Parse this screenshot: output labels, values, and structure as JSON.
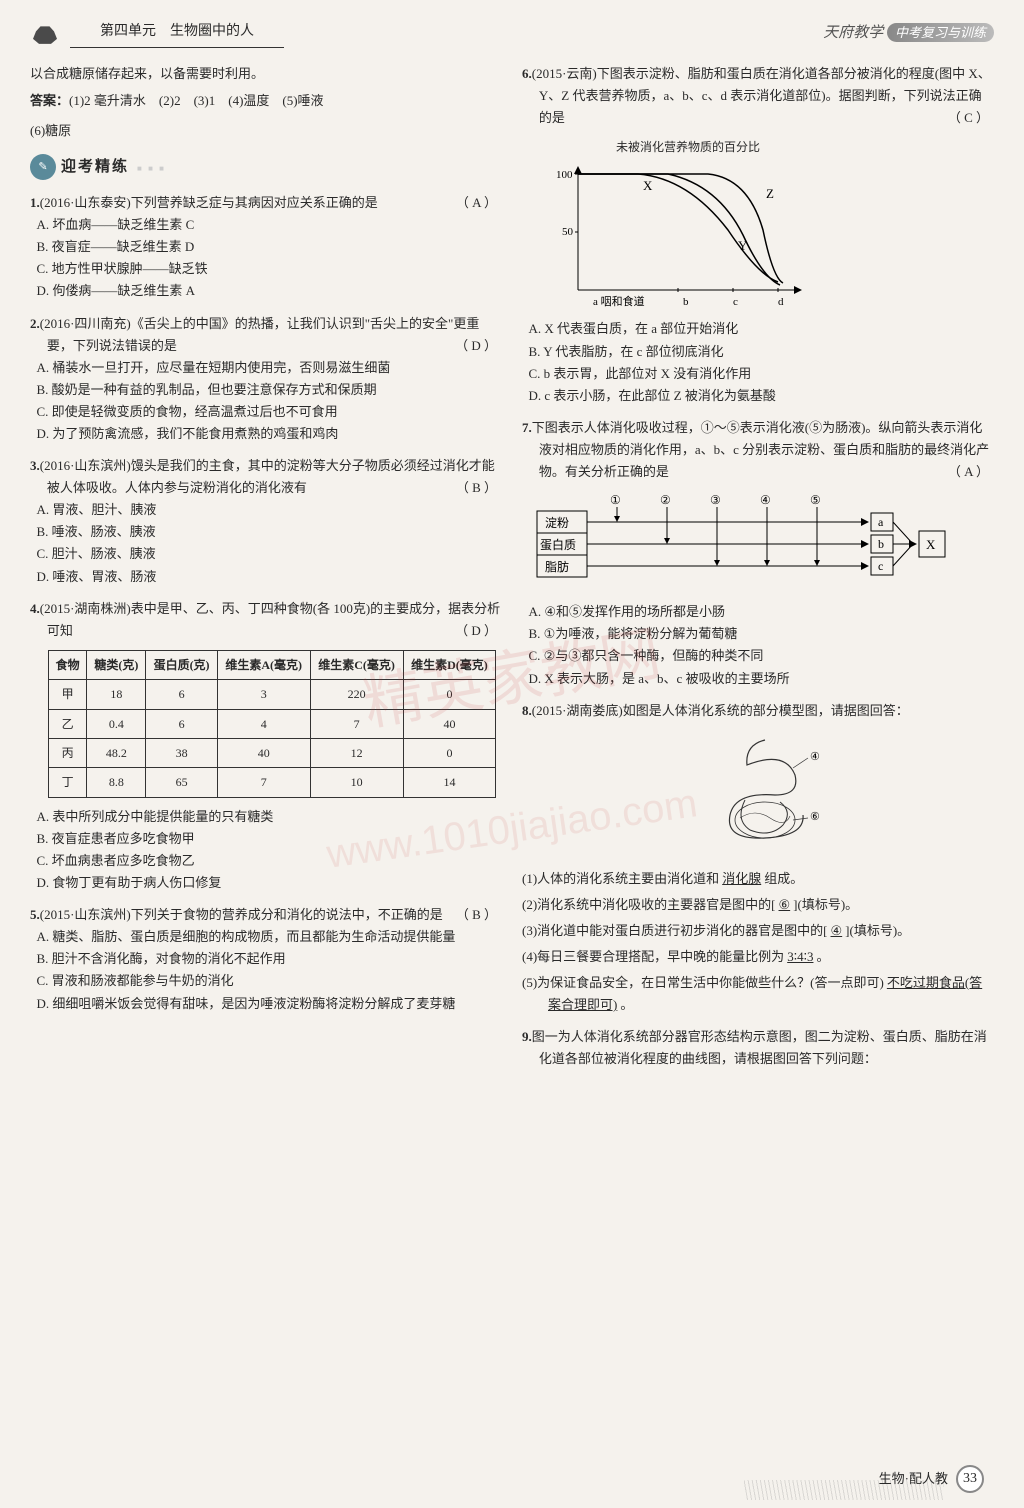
{
  "header": {
    "unit": "第四单元　生物圈中的人",
    "brand": "天府教学",
    "sub": "中考复习与训练"
  },
  "leftCol": {
    "intro": "以合成糖原储存起来，以备需要时利用。",
    "answerLabel": "答案：",
    "answers": "(1)2 毫升清水　(2)2　(3)1　(4)温度　(5)唾液",
    "answers2": "(6)糖原",
    "sectionTitle": "迎考精练",
    "q1": {
      "num": "1.",
      "src": "(2016·山东泰安)下列营养缺乏症与其病因对应关系正确的是",
      "ans": "（ A ）",
      "opts": [
        "A. 坏血病——缺乏维生素 C",
        "B. 夜盲症——缺乏维生素 D",
        "C. 地方性甲状腺肿——缺乏铁",
        "D. 佝偻病——缺乏维生素 A"
      ]
    },
    "q2": {
      "num": "2.",
      "src": "(2016·四川南充)《舌尖上的中国》的热播，让我们认识到\"舌尖上的安全\"更重要，下列说法错误的是",
      "ans": "（ D ）",
      "opts": [
        "A. 桶装水一旦打开，应尽量在短期内使用完，否则易滋生细菌",
        "B. 酸奶是一种有益的乳制品，但也要注意保存方式和保质期",
        "C. 即使是轻微变质的食物，经高温煮过后也不可食用",
        "D. 为了预防禽流感，我们不能食用煮熟的鸡蛋和鸡肉"
      ]
    },
    "q3": {
      "num": "3.",
      "src": "(2016·山东滨州)馒头是我们的主食，其中的淀粉等大分子物质必须经过消化才能被人体吸收。人体内参与淀粉消化的消化液有",
      "ans": "（ B ）",
      "opts": [
        "A. 胃液、胆汁、胰液",
        "B. 唾液、肠液、胰液",
        "C. 胆汁、肠液、胰液",
        "D. 唾液、胃液、肠液"
      ]
    },
    "q4": {
      "num": "4.",
      "src": "(2015·湖南株洲)表中是甲、乙、丙、丁四种食物(各 100克)的主要成分，据表分析可知",
      "ans": "（ D ）",
      "table": {
        "headers": [
          "食物",
          "糖类(克)",
          "蛋白质(克)",
          "维生素A(毫克)",
          "维生素C(毫克)",
          "维生素D(毫克)"
        ],
        "rows": [
          [
            "甲",
            "18",
            "6",
            "3",
            "220",
            "0"
          ],
          [
            "乙",
            "0.4",
            "6",
            "4",
            "7",
            "40"
          ],
          [
            "丙",
            "48.2",
            "38",
            "40",
            "12",
            "0"
          ],
          [
            "丁",
            "8.8",
            "65",
            "7",
            "10",
            "14"
          ]
        ]
      },
      "opts": [
        "A. 表中所列成分中能提供能量的只有糖类",
        "B. 夜盲症患者应多吃食物甲",
        "C. 坏血病患者应多吃食物乙",
        "D. 食物丁更有助于病人伤口修复"
      ]
    },
    "q5": {
      "num": "5.",
      "src": "(2015·山东滨州)下列关于食物的营养成分和消化的说法中，不正确的是",
      "ans": "（ B ）",
      "opts": [
        "A. 糖类、脂肪、蛋白质是细胞的构成物质，而且都能为生命活动提供能量",
        "B. 胆汁不含消化酶，对食物的消化不起作用",
        "C. 胃液和肠液都能参与牛奶的消化",
        "D. 细细咀嚼米饭会觉得有甜味，是因为唾液淀粉酶将淀粉分解成了麦芽糖"
      ]
    }
  },
  "rightCol": {
    "q6": {
      "num": "6.",
      "src": "(2015·云南)下图表示淀粉、脂肪和蛋白质在消化道各部分被消化的程度(图中 X、Y、Z 代表营养物质，a、b、c、d 表示消化道部位)。据图判断，下列说法正确的是",
      "ans": "（ C ）",
      "chartTitle": "未被消化营养物质的百分比",
      "chart": {
        "ylim": [
          0,
          100
        ],
        "yticks": [
          50,
          100
        ],
        "xlabels": [
          "a 咽和食道",
          "b",
          "c",
          "d"
        ],
        "bg": "#ffffff",
        "axis": "#000000",
        "curves": {
          "X": {
            "color": "#000",
            "points": [
              [
                0,
                100
              ],
              [
                60,
                100
              ],
              [
                120,
                95
              ],
              [
                180,
                55
              ],
              [
                220,
                8
              ]
            ]
          },
          "Y": {
            "color": "#000",
            "points": [
              [
                0,
                100
              ],
              [
                60,
                100
              ],
              [
                120,
                100
              ],
              [
                180,
                60
              ],
              [
                220,
                5
              ]
            ]
          },
          "Z": {
            "color": "#000",
            "points": [
              [
                0,
                100
              ],
              [
                60,
                100
              ],
              [
                120,
                100
              ],
              [
                160,
                100
              ],
              [
                200,
                45
              ],
              [
                220,
                8
              ]
            ]
          }
        }
      },
      "opts": [
        "A. X 代表蛋白质，在 a 部位开始消化",
        "B. Y 代表脂肪，在 c 部位彻底消化",
        "C. b 表示胃，此部位对 X 没有消化作用",
        "D. c 表示小肠，在此部位 Z 被消化为氨基酸"
      ]
    },
    "q7": {
      "num": "7.",
      "src": "下图表示人体消化吸收过程，①～⑤表示消化液(⑤为肠液)。纵向箭头表示消化液对相应物质的消化作用，a、b、c 分别表示淀粉、蛋白质和脂肪的最终消化产物。有关分析正确的是",
      "ans": "（ A ）",
      "diagram": {
        "rows": [
          "淀粉",
          "蛋白质",
          "脂肪"
        ],
        "cols": [
          "①",
          "②",
          "③",
          "④",
          "⑤"
        ],
        "outputs": [
          "a",
          "b",
          "c"
        ],
        "box": "X"
      },
      "opts": [
        "A. ④和⑤发挥作用的场所都是小肠",
        "B. ①为唾液，能将淀粉分解为葡萄糖",
        "C. ②与③都只含一种酶，但酶的种类不同",
        "D. X 表示大肠，是 a、b、c 被吸收的主要场所"
      ]
    },
    "q8": {
      "num": "8.",
      "src": "(2015·湖南娄底)如图是人体消化系统的部分模型图，请据图回答：",
      "subq": [
        {
          "n": "(1)",
          "t": "人体的消化系统主要由消化道和",
          "blank": "消化腺",
          "after": "组成。"
        },
        {
          "n": "(2)",
          "t": "消化系统中消化吸收的主要器官是图中的[",
          "blank": "⑥",
          "after": "](填标号)。"
        },
        {
          "n": "(3)",
          "t": "消化道中能对蛋白质进行初步消化的器官是图中的[",
          "blank": "④",
          "after": "](填标号)。"
        },
        {
          "n": "(4)",
          "t": "每日三餐要合理搭配，早中晚的能量比例为",
          "blank": "3∶4∶3",
          "after": "。"
        },
        {
          "n": "(5)",
          "t": "为保证食品安全，在日常生活中你能做些什么？(答一点即可)",
          "blank": "不吃过期食品(答案合理即可)",
          "after": "。"
        }
      ]
    },
    "q9": {
      "num": "9.",
      "src": "图一为人体消化系统部分器官形态结构示意图，图二为淀粉、蛋白质、脂肪在消化道各部位被消化程度的曲线图，请根据图回答下列问题："
    }
  },
  "footer": {
    "text": "生物·配人教",
    "page": "33"
  },
  "watermark": "精英家教网",
  "watermark2": "www.1010jiajiao.com"
}
